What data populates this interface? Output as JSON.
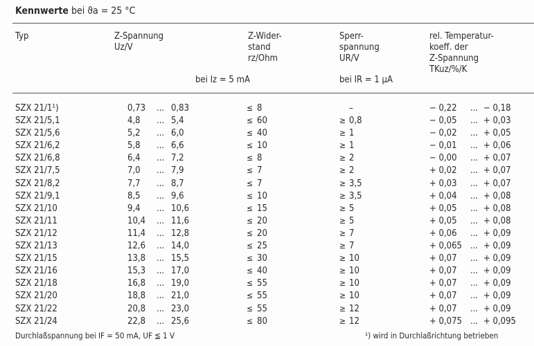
{
  "title": {
    "bold": "Kennwerte",
    "rest": "bei ϑa = 25 °C"
  },
  "headers": {
    "typ": "Typ",
    "uz": [
      "Z-Spannung",
      "Uz/V"
    ],
    "rz": [
      "Z-Wider-",
      "stand",
      "rz/Ohm"
    ],
    "ur": [
      "Sperr-",
      "spannung",
      "UR/V"
    ],
    "tk": [
      "rel. Temperatur-",
      "koeff. der",
      "Z-Spannung",
      "TKuz/%/K"
    ],
    "cond_iz": "bei Iz = 5 mA",
    "cond_ir": "bei IR = 1 µA"
  },
  "rows": [
    {
      "type": "SZX 21/1¹)",
      "uz_min": "0,73",
      "uz_max": "0,83",
      "rz_sym": "≤",
      "rz": "8",
      "ur_sym": "",
      "ur": "–",
      "tk_min": "− 0,22",
      "tk_max": "− 0,18"
    },
    {
      "type": "SZX 21/5,1",
      "uz_min": "4,8",
      "uz_max": "5,4",
      "rz_sym": "≤",
      "rz": "60",
      "ur_sym": "≥",
      "ur": "0,8",
      "tk_min": "− 0,05",
      "tk_max": "+ 0,03"
    },
    {
      "type": "SZX 21/5,6",
      "uz_min": "5,2",
      "uz_max": "6,0",
      "rz_sym": "≤",
      "rz": "40",
      "ur_sym": "≥",
      "ur": "1",
      "tk_min": "− 0,02",
      "tk_max": "+ 0,05"
    },
    {
      "type": "SZX 21/6,2",
      "uz_min": "5,8",
      "uz_max": "6,6",
      "rz_sym": "≤",
      "rz": "10",
      "ur_sym": "≥",
      "ur": "1",
      "tk_min": "− 0,01",
      "tk_max": "+ 0,06"
    },
    {
      "type": "SZX 21/6,8",
      "uz_min": "6,4",
      "uz_max": "7,2",
      "rz_sym": "≤",
      "rz": "8",
      "ur_sym": "≥",
      "ur": "2",
      "tk_min": "− 0,00",
      "tk_max": "+ 0,07"
    },
    {
      "type": "SZX 21/7,5",
      "uz_min": "7,0",
      "uz_max": "7,9",
      "rz_sym": "≤",
      "rz": "7",
      "ur_sym": "≥",
      "ur": "2",
      "tk_min": "+ 0,02",
      "tk_max": "+ 0,07"
    },
    {
      "type": "SZX 21/8,2",
      "uz_min": "7,7",
      "uz_max": "8,7",
      "rz_sym": "≤",
      "rz": "7",
      "ur_sym": "≥",
      "ur": "3,5",
      "tk_min": "+ 0,03",
      "tk_max": "+ 0,07"
    },
    {
      "type": "SZX 21/9,1",
      "uz_min": "8,5",
      "uz_max": "9,6",
      "rz_sym": "≤",
      "rz": "10",
      "ur_sym": "≥",
      "ur": "3,5",
      "tk_min": "+ 0,04",
      "tk_max": "+ 0,08"
    },
    {
      "type": "SZX 21/10",
      "uz_min": "9,4",
      "uz_max": "10,6",
      "rz_sym": "≤",
      "rz": "15",
      "ur_sym": "≥",
      "ur": "5",
      "tk_min": "+ 0,05",
      "tk_max": "+ 0,08"
    },
    {
      "type": "SZX 21/11",
      "uz_min": "10,4",
      "uz_max": "11,6",
      "rz_sym": "≤",
      "rz": "20",
      "ur_sym": "≥",
      "ur": "5",
      "tk_min": "+ 0,05",
      "tk_max": "+ 0,08"
    },
    {
      "type": "SZX 21/12",
      "uz_min": "11,4",
      "uz_max": "12,8",
      "rz_sym": "≤",
      "rz": "20",
      "ur_sym": "≥",
      "ur": "7",
      "tk_min": "+ 0,06",
      "tk_max": "+ 0,09"
    },
    {
      "type": "SZX 21/13",
      "uz_min": "12,6",
      "uz_max": "14,0",
      "rz_sym": "≤",
      "rz": "25",
      "ur_sym": "≥",
      "ur": "7",
      "tk_min": "+ 0,065",
      "tk_max": "+ 0,09"
    },
    {
      "type": "SZX 21/15",
      "uz_min": "13,8",
      "uz_max": "15,5",
      "rz_sym": "≤",
      "rz": "30",
      "ur_sym": "≥",
      "ur": "10",
      "tk_min": "+ 0,07",
      "tk_max": "+ 0,09"
    },
    {
      "type": "SZX 21/16",
      "uz_min": "15,3",
      "uz_max": "17,0",
      "rz_sym": "≤",
      "rz": "40",
      "ur_sym": "≥",
      "ur": "10",
      "tk_min": "+ 0,07",
      "tk_max": "+ 0,09"
    },
    {
      "type": "SZX 21/18",
      "uz_min": "16,8",
      "uz_max": "19,0",
      "rz_sym": "≤",
      "rz": "55",
      "ur_sym": "≥",
      "ur": "10",
      "tk_min": "+ 0,07",
      "tk_max": "+ 0,09"
    },
    {
      "type": "SZX 21/20",
      "uz_min": "18,8",
      "uz_max": "21,0",
      "rz_sym": "≤",
      "rz": "55",
      "ur_sym": "≥",
      "ur": "10",
      "tk_min": "+ 0,07",
      "tk_max": "+ 0,09"
    },
    {
      "type": "SZX 21/22",
      "uz_min": "20,8",
      "uz_max": "23,0",
      "rz_sym": "≤",
      "rz": "55",
      "ur_sym": "≥",
      "ur": "12",
      "tk_min": "+ 0,07",
      "tk_max": "+ 0,09"
    },
    {
      "type": "SZX 21/24",
      "uz_min": "22,8",
      "uz_max": "25,6",
      "rz_sym": "≤",
      "rz": "80",
      "ur_sym": "≥",
      "ur": "12",
      "tk_min": "+ 0,075",
      "tk_max": "+ 0,095"
    }
  ],
  "range_sep": "...",
  "footer": {
    "left": "Durchlaßspannung bei IF = 50 mA, UF ≦ 1 V",
    "right": "¹) wird in Durchlaßrichtung betrieben"
  }
}
